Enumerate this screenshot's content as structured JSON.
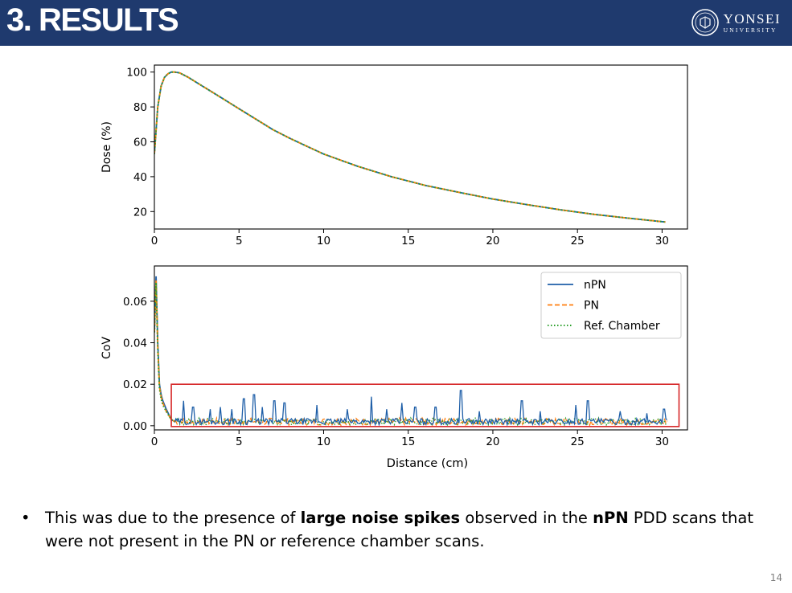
{
  "header": {
    "title": "3. RESULTS",
    "logo_name": "YONSEI",
    "logo_sub": "UNIVERSITY"
  },
  "colors": {
    "header_bg": "#1f3a6e",
    "npn": "#1f5fa8",
    "pn": "#ff7f0e",
    "ref": "#2ca02c",
    "highlight": "#d62728"
  },
  "chart_data": [
    {
      "type": "line",
      "title": "",
      "xlabel": "",
      "ylabel": "Dose (%)",
      "xlim": [
        0,
        31.5
      ],
      "ylim": [
        10,
        104
      ],
      "xticks": [
        0,
        5,
        10,
        15,
        20,
        25,
        30
      ],
      "yticks": [
        20,
        40,
        60,
        80,
        100
      ],
      "x": [
        0,
        0.2,
        0.4,
        0.6,
        0.8,
        1.0,
        1.2,
        1.5,
        2,
        3,
        4,
        5,
        6,
        7,
        8,
        9,
        10,
        12,
        14,
        16,
        18,
        20,
        22,
        24,
        26,
        28,
        30.2
      ],
      "series": [
        {
          "name": "nPN",
          "style": "solid",
          "values": [
            53,
            80,
            92,
            97,
            99,
            100,
            100,
            99.5,
            97,
            91,
            85,
            79,
            73,
            67,
            62,
            57.5,
            53,
            46,
            40,
            35,
            31,
            27.2,
            24,
            21,
            18.4,
            16.2,
            14
          ]
        },
        {
          "name": "PN",
          "style": "dashed",
          "values": [
            53,
            80,
            92,
            97,
            99,
            100,
            100,
            99.5,
            97,
            91,
            85,
            79,
            73,
            67,
            62,
            57.5,
            53,
            46,
            40,
            35,
            31,
            27.2,
            24,
            21,
            18.4,
            16.2,
            14
          ]
        },
        {
          "name": "Ref. Chamber",
          "style": "dotted",
          "values": [
            53,
            80,
            92,
            97,
            99,
            100,
            100,
            99.5,
            97,
            91,
            85,
            79,
            73,
            67,
            62,
            57.5,
            53,
            46,
            40,
            35,
            31,
            27.2,
            24,
            21,
            18.4,
            16.2,
            14
          ]
        }
      ]
    },
    {
      "type": "line",
      "title": "",
      "xlabel": "Distance (cm)",
      "ylabel": "CoV",
      "xlim": [
        0,
        31.5
      ],
      "ylim": [
        -0.002,
        0.077
      ],
      "xticks": [
        0,
        5,
        10,
        15,
        20,
        25,
        30
      ],
      "yticks": [
        0.0,
        0.02,
        0.04,
        0.06
      ],
      "legend": {
        "placement": "top-right",
        "entries": [
          "nPN",
          "PN",
          "Ref. Chamber"
        ]
      },
      "x": [
        0,
        0.1,
        0.2,
        0.3,
        0.4,
        0.5,
        0.7,
        1.0,
        1.2
      ],
      "series": [
        {
          "name": "nPN",
          "style": "solid",
          "values": [
            0.045,
            0.072,
            0.04,
            0.02,
            0.015,
            0.012,
            0.008,
            0.003,
            0.002
          ]
        },
        {
          "name": "PN",
          "style": "dashed",
          "values": [
            0.045,
            0.07,
            0.038,
            0.019,
            0.014,
            0.011,
            0.007,
            0.003,
            0.002
          ]
        },
        {
          "name": "Ref. Chamber",
          "style": "dotted",
          "values": [
            0.045,
            0.069,
            0.037,
            0.018,
            0.013,
            0.01,
            0.007,
            0.003,
            0.002
          ]
        }
      ],
      "noise_baseline": 0.002,
      "npn_spikes": [
        {
          "x": 1.7,
          "y": 0.012
        },
        {
          "x": 2.3,
          "y": 0.009
        },
        {
          "x": 3.3,
          "y": 0.008
        },
        {
          "x": 3.9,
          "y": 0.009
        },
        {
          "x": 4.6,
          "y": 0.008
        },
        {
          "x": 5.3,
          "y": 0.013
        },
        {
          "x": 5.9,
          "y": 0.015
        },
        {
          "x": 6.4,
          "y": 0.009
        },
        {
          "x": 7.1,
          "y": 0.012
        },
        {
          "x": 7.7,
          "y": 0.011
        },
        {
          "x": 9.6,
          "y": 0.01
        },
        {
          "x": 11.4,
          "y": 0.008
        },
        {
          "x": 12.8,
          "y": 0.014
        },
        {
          "x": 13.7,
          "y": 0.008
        },
        {
          "x": 14.6,
          "y": 0.011
        },
        {
          "x": 15.4,
          "y": 0.009
        },
        {
          "x": 16.6,
          "y": 0.009
        },
        {
          "x": 18.1,
          "y": 0.017
        },
        {
          "x": 19.2,
          "y": 0.007
        },
        {
          "x": 21.7,
          "y": 0.012
        },
        {
          "x": 22.8,
          "y": 0.007
        },
        {
          "x": 24.9,
          "y": 0.01
        },
        {
          "x": 25.6,
          "y": 0.012
        },
        {
          "x": 27.5,
          "y": 0.007
        },
        {
          "x": 29.1,
          "y": 0.006
        },
        {
          "x": 30.1,
          "y": 0.008
        }
      ],
      "highlight_box": {
        "x": [
          1.0,
          31.0
        ],
        "y": [
          0.0,
          0.02
        ]
      }
    }
  ],
  "bullet": {
    "symbol": "•",
    "part1": "This was due to the presence of ",
    "bold1": "large noise spikes",
    "part2": " observed in the ",
    "bold2": "nPN",
    "part3": " PDD scans that were not present in the PN or reference chamber scans."
  },
  "page_number": "14"
}
